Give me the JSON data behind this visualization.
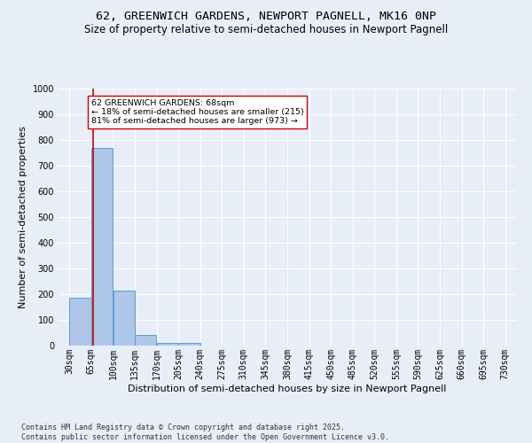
{
  "title_line1": "62, GREENWICH GARDENS, NEWPORT PAGNELL, MK16 0NP",
  "title_line2": "Size of property relative to semi-detached houses in Newport Pagnell",
  "xlabel": "Distribution of semi-detached houses by size in Newport Pagnell",
  "ylabel": "Number of semi-detached properties",
  "footnote": "Contains HM Land Registry data © Crown copyright and database right 2025.\nContains public sector information licensed under the Open Government Licence v3.0.",
  "bar_edges": [
    30,
    65,
    100,
    135,
    170,
    205,
    240,
    275,
    310,
    345,
    380,
    415,
    450,
    485,
    520,
    555,
    590,
    625,
    660,
    695,
    730
  ],
  "bar_values": [
    185,
    770,
    215,
    40,
    12,
    10,
    0,
    0,
    0,
    0,
    0,
    0,
    0,
    0,
    0,
    0,
    0,
    0,
    0,
    0
  ],
  "bar_color": "#aec6e8",
  "bar_edge_color": "#5a9fd4",
  "property_size": 68,
  "red_line_color": "#cc0000",
  "annotation_text": "62 GREENWICH GARDENS: 68sqm\n← 18% of semi-detached houses are smaller (215)\n81% of semi-detached houses are larger (973) →",
  "annotation_box_color": "#ffffff",
  "annotation_box_edge": "#cc0000",
  "ylim": [
    0,
    1000
  ],
  "yticks": [
    0,
    100,
    200,
    300,
    400,
    500,
    600,
    700,
    800,
    900,
    1000
  ],
  "background_color": "#e8eef8",
  "grid_color": "#ffffff",
  "title_fontsize": 9.5,
  "subtitle_fontsize": 8.5,
  "axis_label_fontsize": 8,
  "tick_fontsize": 7,
  "footnote_fontsize": 6
}
